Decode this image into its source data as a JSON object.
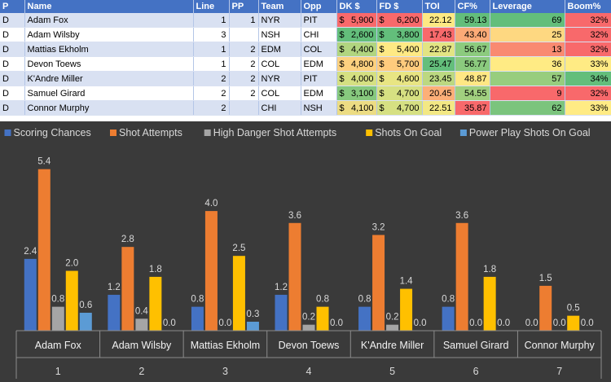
{
  "table": {
    "headers": [
      "P",
      "Name",
      "Line",
      "PP",
      "Team",
      "Opp",
      "DK $",
      "FD $",
      "TOI",
      "CF%",
      "Leverage",
      "Boom%"
    ],
    "rows": [
      {
        "p": "D",
        "name": "Adam Fox",
        "line": "1",
        "pp": "1",
        "team": "NYR",
        "opp": "PIT",
        "dk": "5,900",
        "fd": "6,200",
        "toi": "22.12",
        "cf": "59.13",
        "lev": "69",
        "boom": "32%"
      },
      {
        "p": "D",
        "name": "Adam Wilsby",
        "line": "3",
        "pp": "",
        "team": "NSH",
        "opp": "CHI",
        "dk": "2,600",
        "fd": "3,800",
        "toi": "17.43",
        "cf": "43.40",
        "lev": "25",
        "boom": "32%"
      },
      {
        "p": "D",
        "name": "Mattias Ekholm",
        "line": "1",
        "pp": "2",
        "team": "EDM",
        "opp": "COL",
        "dk": "4,400",
        "fd": "5,400",
        "toi": "22.87",
        "cf": "56.67",
        "lev": "13",
        "boom": "32%"
      },
      {
        "p": "D",
        "name": "Devon Toews",
        "line": "1",
        "pp": "2",
        "team": "COL",
        "opp": "EDM",
        "dk": "4,800",
        "fd": "5,700",
        "toi": "25.47",
        "cf": "56.77",
        "lev": "36",
        "boom": "33%"
      },
      {
        "p": "D",
        "name": "K'Andre Miller",
        "line": "2",
        "pp": "2",
        "team": "NYR",
        "opp": "PIT",
        "dk": "4,000",
        "fd": "4,600",
        "toi": "23.45",
        "cf": "48.87",
        "lev": "57",
        "boom": "34%"
      },
      {
        "p": "D",
        "name": "Samuel Girard",
        "line": "2",
        "pp": "2",
        "team": "COL",
        "opp": "EDM",
        "dk": "3,100",
        "fd": "4,700",
        "toi": "20.45",
        "cf": "54.55",
        "lev": "9",
        "boom": "32%"
      },
      {
        "p": "D",
        "name": "Connor Murphy",
        "line": "2",
        "pp": "",
        "team": "CHI",
        "opp": "NSH",
        "dk": "4,100",
        "fd": "4,700",
        "toi": "22.51",
        "cf": "35.87",
        "lev": "62",
        "boom": "33%"
      }
    ],
    "currency_symbol": "$",
    "colors": {
      "dk": [
        "#f8696b",
        "#63be7b",
        "#b1d580",
        "#fdd17f",
        "#d5e082",
        "#87c97e",
        "#ecdc83"
      ],
      "fd": [
        "#f8696b",
        "#63be7b",
        "#ffe984",
        "#ffcb7d",
        "#e8e583",
        "#d6e082",
        "#d6e082"
      ],
      "toi": [
        "#fee983",
        "#f8696b",
        "#e2e483",
        "#63be7b",
        "#bcd881",
        "#fcaf78",
        "#f3e884"
      ],
      "cf": [
        "#63be7b",
        "#fcaa77",
        "#8ccb7e",
        "#8bca7e",
        "#ffe784",
        "#a1d07f",
        "#f8696b"
      ],
      "lev": [
        "#63be7b",
        "#fed881",
        "#f98a71",
        "#ffeb84",
        "#97cd7e",
        "#f8696b",
        "#7bc47d"
      ],
      "boom": [
        "#f8696b",
        "#f8696b",
        "#f8696b",
        "#ffeb84",
        "#63be7b",
        "#f8696b",
        "#ffeb84"
      ]
    }
  },
  "chart_data": {
    "type": "bar",
    "categories": [
      "Adam Fox",
      "Adam Wilsby",
      "Mattias Ekholm",
      "Devon Toews",
      "K'Andre Miller",
      "Samuel Girard",
      "Connor Murphy"
    ],
    "category_numbers": [
      "1",
      "2",
      "3",
      "4",
      "5",
      "6",
      "7"
    ],
    "series": [
      {
        "name": "Scoring Chances",
        "color": "#4472c4",
        "values": [
          2.4,
          1.2,
          0.8,
          1.2,
          0.8,
          0.8,
          0.0
        ],
        "labels": [
          "2.4",
          "1.2",
          "0.8",
          "1.2",
          "0.8",
          "0.8",
          "0.0"
        ]
      },
      {
        "name": "Shot Attempts",
        "color": "#ed7d31",
        "values": [
          5.4,
          2.8,
          4.0,
          3.6,
          3.2,
          3.6,
          1.5
        ],
        "labels": [
          "5.4",
          "2.8",
          "4.0",
          "3.6",
          "3.2",
          "3.6",
          "1.5"
        ]
      },
      {
        "name": "High Danger Shot Attempts",
        "color": "#a5a5a5",
        "values": [
          0.8,
          0.4,
          0.0,
          0.2,
          0.2,
          0.0,
          0.0
        ],
        "labels": [
          "0.8",
          "0.4",
          "0.0",
          "0.2",
          "0.2",
          "0.0",
          "0.0"
        ]
      },
      {
        "name": "Shots On Goal",
        "color": "#ffc000",
        "values": [
          2.0,
          1.8,
          2.5,
          0.8,
          1.4,
          1.8,
          0.5
        ],
        "labels": [
          "2.0",
          "1.8",
          "2.5",
          "0.8",
          "1.4",
          "1.8",
          "0.5"
        ]
      },
      {
        "name": "Power Play Shots On Goal",
        "color": "#5b9bd5",
        "values": [
          0.6,
          0.0,
          0.3,
          0.0,
          0.0,
          0.0,
          0.0
        ],
        "labels": [
          "0.6",
          "0.0",
          "0.3",
          "0.0",
          "0.0",
          "0.0",
          "0.0"
        ]
      }
    ],
    "title": "",
    "xlabel": "",
    "ylabel": "",
    "ylim": [
      0,
      5.8
    ],
    "legend": "top",
    "grid": false,
    "background": "#3a3a3a"
  }
}
